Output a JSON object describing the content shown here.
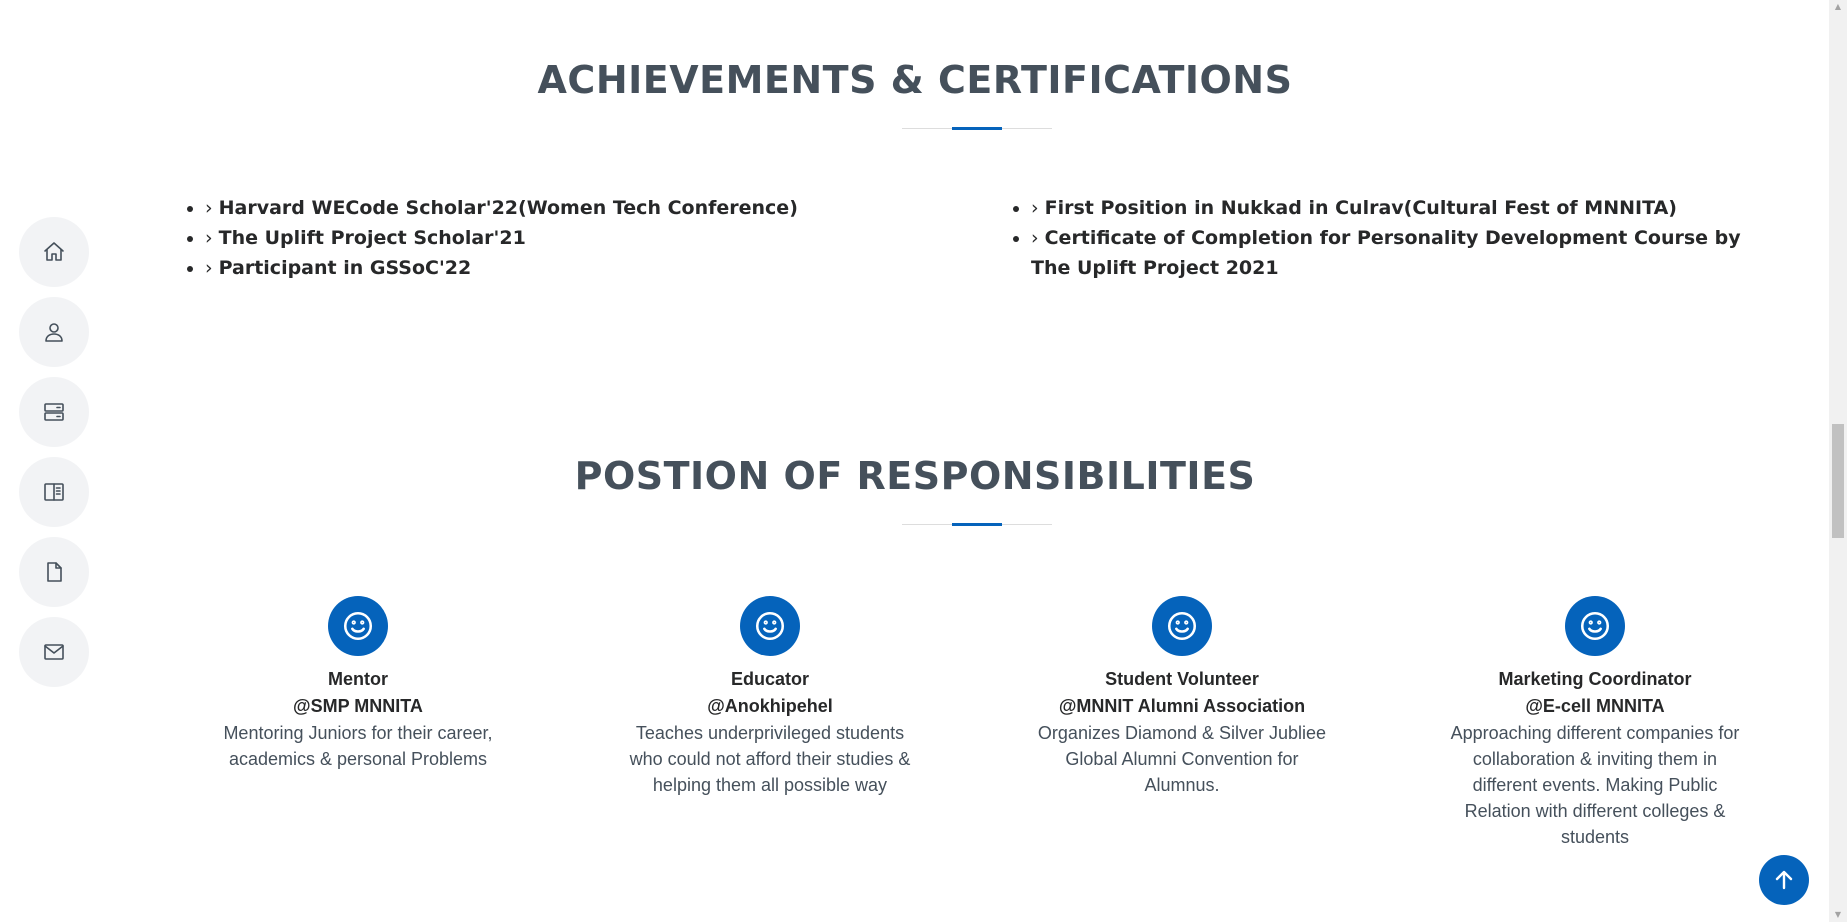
{
  "achievements": {
    "title": "ACHIEVEMENTS & CERTIFICATIONS",
    "left": [
      "Harvard WECode Scholar'22(Women Tech Conference)",
      "The Uplift Project Scholar'21",
      "Participant in GSSoC'22"
    ],
    "right": [
      "First Position in Nukkad in Culrav(Cultural Fest of MNNITA)",
      "Certificate of Completion for Personality Development Course by The Uplift Project 2021"
    ]
  },
  "responsibilities": {
    "title": "POSTION OF RESPONSIBILITIES",
    "items": [
      {
        "role": "Mentor",
        "org": "@SMP MNNITA",
        "desc": "Mentoring Juniors for their career, academics & personal Problems"
      },
      {
        "role": "Educator",
        "org": "@Anokhipehel",
        "desc": "Teaches underprivileged students who could not afford their studies & helping them all possible way"
      },
      {
        "role": "Student Volunteer",
        "org": "@MNNIT Alumni Association",
        "desc": "Organizes Diamond & Silver Jubliee Global Alumni Convention for Alumnus."
      },
      {
        "role": "Marketing Coordinator",
        "org": "@E-cell MNNITA",
        "desc": "Approaching different companies for collaboration & inviting them in different events. Making Public Relation with different colleges & students"
      }
    ]
  },
  "nav": {
    "icons": [
      "home-icon",
      "person-icon",
      "server-icon",
      "book-icon",
      "file-icon",
      "envelope-icon"
    ]
  },
  "colors": {
    "accent": "#0563bb",
    "heading": "#45505b",
    "text": "#272829",
    "nav_bg": "#f2f3f5"
  }
}
